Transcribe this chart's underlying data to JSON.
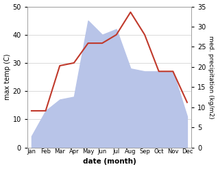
{
  "months": [
    "Jan",
    "Feb",
    "Mar",
    "Apr",
    "May",
    "Jun",
    "Jul",
    "Aug",
    "Sep",
    "Oct",
    "Nov",
    "Dec"
  ],
  "temperature": [
    13,
    13,
    29,
    30,
    37,
    37,
    40,
    48,
    40,
    27,
    27,
    16
  ],
  "precipitation_left_scale": [
    4,
    13,
    17,
    18,
    45,
    40,
    42,
    28,
    27,
    27,
    27,
    11
  ],
  "precip_color_fill": "#b8c4e8",
  "temp_color": "#c0392b",
  "ylabel_left": "max temp (C)",
  "ylabel_right": "med. precipitation (kg/m2)",
  "xlabel": "date (month)",
  "ylim_left": [
    0,
    50
  ],
  "ylim_right": [
    0,
    35
  ],
  "yticks_left": [
    0,
    10,
    20,
    30,
    40,
    50
  ],
  "yticks_right": [
    0,
    5,
    10,
    15,
    20,
    25,
    30,
    35
  ],
  "grid_color": "#cccccc"
}
